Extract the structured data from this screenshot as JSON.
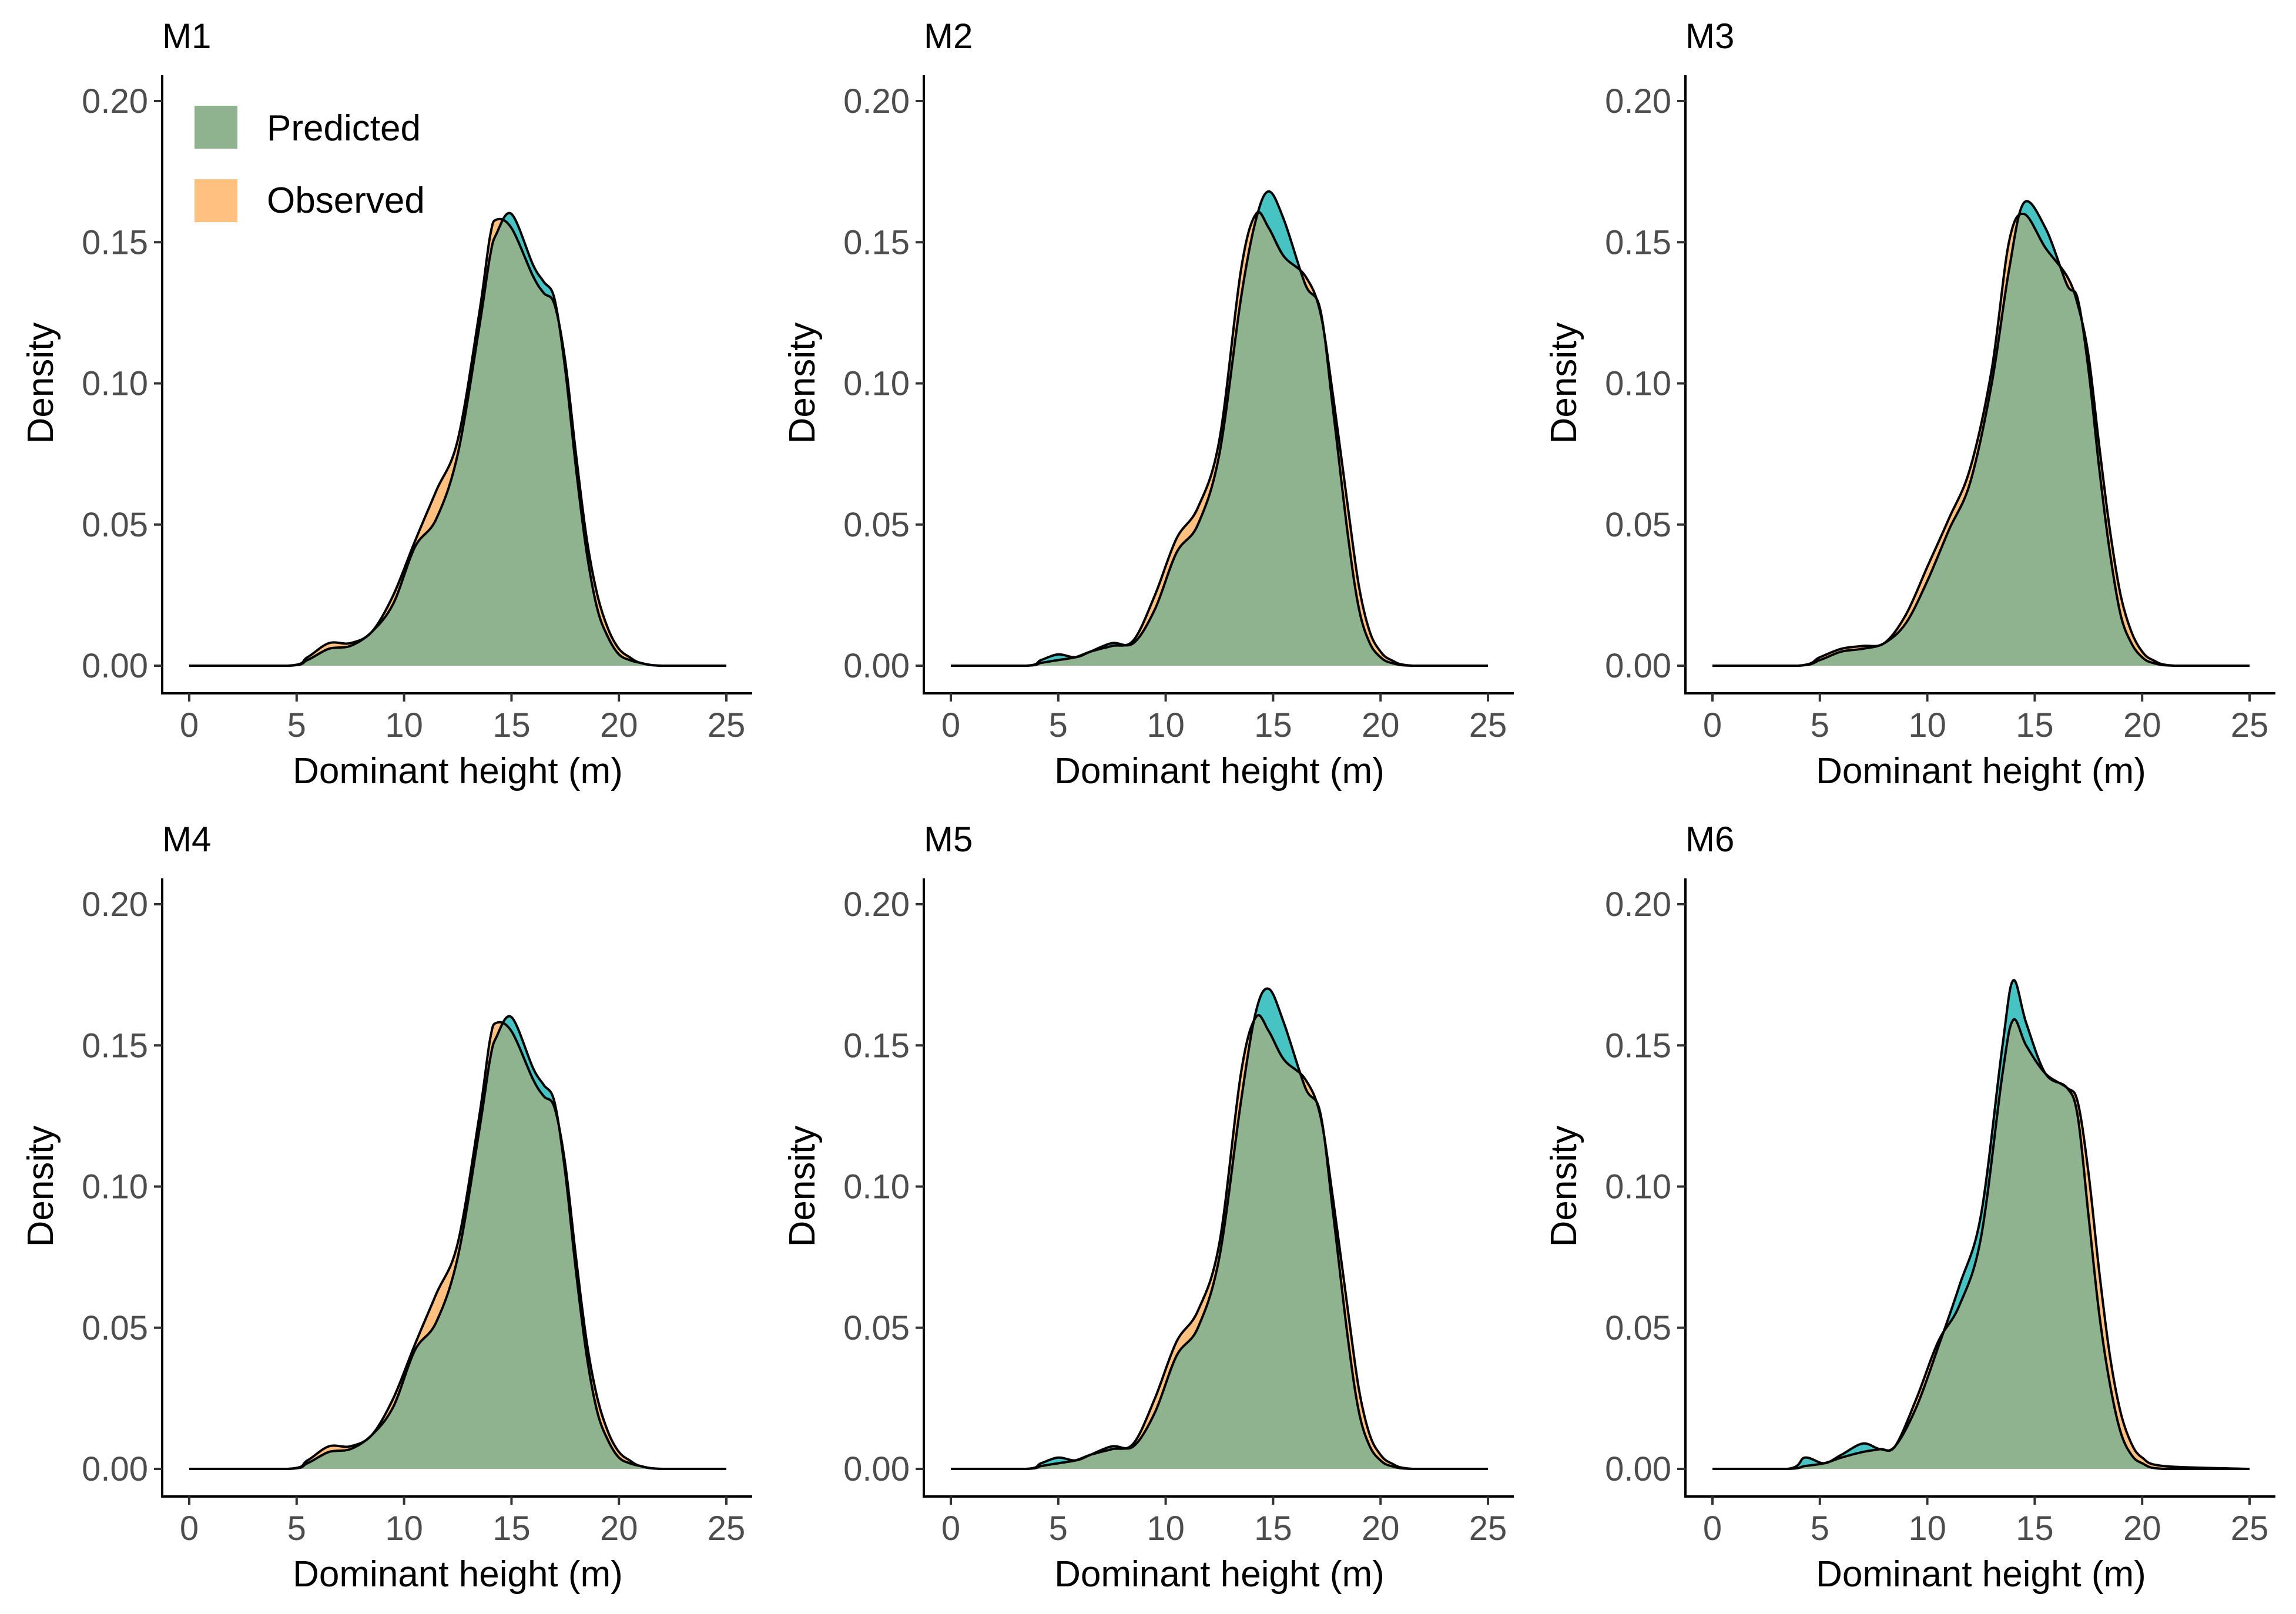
{
  "figure": {
    "colors": {
      "predicted_fill": "#48c3c3",
      "observed_fill": "#ffc080",
      "overlap_fill": "#8fb38f",
      "line": "#000000"
    }
  },
  "chart_data": [
    {
      "type": "area",
      "title": "M1",
      "xlabel": "Dominant height (m)",
      "ylabel": "Density",
      "xlim": [
        0,
        25
      ],
      "ylim": [
        0,
        0.2
      ],
      "xticks": [
        "0",
        "5",
        "10",
        "15",
        "20",
        "25"
      ],
      "yticks": [
        "0.00",
        "0.05",
        "0.10",
        "0.15",
        "0.20"
      ],
      "legend": {
        "position": "top-left",
        "entries": [
          "Predicted",
          "Observed"
        ]
      },
      "x": [
        0,
        4.6,
        5.5,
        6.5,
        7.5,
        8.5,
        9.5,
        10.5,
        11.5,
        12.5,
        13.5,
        14.0,
        14.3,
        15.0,
        16.0,
        16.5,
        17.0,
        17.5,
        18.0,
        18.5,
        19.0,
        19.5,
        20.0,
        20.5,
        21.0,
        22.0,
        25
      ],
      "series": [
        {
          "name": "Predicted",
          "values": [
            0,
            0.0,
            0.002,
            0.006,
            0.007,
            0.012,
            0.022,
            0.042,
            0.052,
            0.075,
            0.12,
            0.145,
            0.153,
            0.16,
            0.142,
            0.136,
            0.13,
            0.105,
            0.07,
            0.04,
            0.02,
            0.01,
            0.004,
            0.002,
            0.001,
            0.0,
            0
          ]
        },
        {
          "name": "Observed",
          "values": [
            0,
            0.0,
            0.003,
            0.008,
            0.008,
            0.012,
            0.025,
            0.044,
            0.062,
            0.08,
            0.125,
            0.152,
            0.158,
            0.155,
            0.138,
            0.132,
            0.128,
            0.108,
            0.075,
            0.045,
            0.025,
            0.013,
            0.006,
            0.003,
            0.001,
            0.0,
            0
          ]
        }
      ]
    },
    {
      "type": "area",
      "title": "M2",
      "xlabel": "Dominant height (m)",
      "ylabel": "Density",
      "xlim": [
        0,
        25
      ],
      "ylim": [
        0,
        0.2
      ],
      "xticks": [
        "0",
        "5",
        "10",
        "15",
        "20",
        "25"
      ],
      "yticks": [
        "0.00",
        "0.05",
        "0.10",
        "0.15",
        "0.20"
      ],
      "x": [
        0,
        3.5,
        4.2,
        5.0,
        5.8,
        6.5,
        7.5,
        8.5,
        9.5,
        10.5,
        11.5,
        12.5,
        13.5,
        14.2,
        14.8,
        15.5,
        16.5,
        17.2,
        17.8,
        18.5,
        19.0,
        19.5,
        20.0,
        20.5,
        21.5,
        25
      ],
      "series": [
        {
          "name": "Predicted",
          "values": [
            0,
            0.0,
            0.002,
            0.004,
            0.003,
            0.005,
            0.008,
            0.008,
            0.02,
            0.04,
            0.05,
            0.075,
            0.13,
            0.158,
            0.168,
            0.158,
            0.135,
            0.126,
            0.09,
            0.045,
            0.02,
            0.008,
            0.003,
            0.001,
            0.0,
            0
          ]
        },
        {
          "name": "Observed",
          "values": [
            0,
            0.0,
            0.001,
            0.002,
            0.003,
            0.005,
            0.007,
            0.009,
            0.025,
            0.045,
            0.056,
            0.08,
            0.14,
            0.16,
            0.155,
            0.145,
            0.138,
            0.125,
            0.095,
            0.055,
            0.028,
            0.012,
            0.005,
            0.002,
            0.0,
            0
          ]
        }
      ]
    },
    {
      "type": "area",
      "title": "M3",
      "xlabel": "Dominant height (m)",
      "ylabel": "Density",
      "xlim": [
        0,
        25
      ],
      "ylim": [
        0,
        0.2
      ],
      "xticks": [
        "0",
        "5",
        "10",
        "15",
        "20",
        "25"
      ],
      "yticks": [
        "0.00",
        "0.05",
        "0.10",
        "0.15",
        "0.20"
      ],
      "x": [
        0,
        4.0,
        5.0,
        6.0,
        7.0,
        8.0,
        9.0,
        10.0,
        11.0,
        12.0,
        13.0,
        13.8,
        14.5,
        15.5,
        16.5,
        17.0,
        17.5,
        18.0,
        18.5,
        19.0,
        19.5,
        20.0,
        20.5,
        21.5,
        25
      ],
      "series": [
        {
          "name": "Predicted",
          "values": [
            0,
            0.0,
            0.002,
            0.005,
            0.006,
            0.008,
            0.015,
            0.03,
            0.048,
            0.065,
            0.1,
            0.14,
            0.164,
            0.155,
            0.135,
            0.13,
            0.105,
            0.07,
            0.04,
            0.018,
            0.008,
            0.003,
            0.001,
            0.0,
            0
          ]
        },
        {
          "name": "Observed",
          "values": [
            0,
            0.0,
            0.003,
            0.006,
            0.007,
            0.008,
            0.018,
            0.035,
            0.052,
            0.07,
            0.105,
            0.15,
            0.16,
            0.148,
            0.138,
            0.128,
            0.11,
            0.078,
            0.048,
            0.025,
            0.012,
            0.005,
            0.002,
            0.0,
            0
          ]
        }
      ]
    },
    {
      "type": "area",
      "title": "M4",
      "xlabel": "Dominant height (m)",
      "ylabel": "Density",
      "xlim": [
        0,
        25
      ],
      "ylim": [
        0,
        0.2
      ],
      "xticks": [
        "0",
        "5",
        "10",
        "15",
        "20",
        "25"
      ],
      "yticks": [
        "0.00",
        "0.05",
        "0.10",
        "0.15",
        "0.20"
      ],
      "x": [
        0,
        4.6,
        5.5,
        6.5,
        7.5,
        8.5,
        9.5,
        10.5,
        11.5,
        12.5,
        13.5,
        14.0,
        14.3,
        15.0,
        16.0,
        16.5,
        17.0,
        17.5,
        18.0,
        18.5,
        19.0,
        19.5,
        20.0,
        20.5,
        21.0,
        22.0,
        25
      ],
      "series": [
        {
          "name": "Predicted",
          "values": [
            0,
            0.0,
            0.002,
            0.006,
            0.007,
            0.012,
            0.022,
            0.042,
            0.052,
            0.075,
            0.12,
            0.145,
            0.153,
            0.16,
            0.142,
            0.136,
            0.13,
            0.105,
            0.07,
            0.04,
            0.02,
            0.01,
            0.004,
            0.002,
            0.001,
            0.0,
            0
          ]
        },
        {
          "name": "Observed",
          "values": [
            0,
            0.0,
            0.003,
            0.008,
            0.008,
            0.012,
            0.025,
            0.044,
            0.062,
            0.08,
            0.125,
            0.152,
            0.158,
            0.155,
            0.138,
            0.132,
            0.128,
            0.108,
            0.075,
            0.045,
            0.025,
            0.013,
            0.006,
            0.003,
            0.001,
            0.0,
            0
          ]
        }
      ]
    },
    {
      "type": "area",
      "title": "M5",
      "xlabel": "Dominant height (m)",
      "ylabel": "Density",
      "xlim": [
        0,
        25
      ],
      "ylim": [
        0,
        0.2
      ],
      "xticks": [
        "0",
        "5",
        "10",
        "15",
        "20",
        "25"
      ],
      "yticks": [
        "0.00",
        "0.05",
        "0.10",
        "0.15",
        "0.20"
      ],
      "x": [
        0,
        3.5,
        4.2,
        5.0,
        5.8,
        6.5,
        7.5,
        8.5,
        9.5,
        10.5,
        11.5,
        12.5,
        13.5,
        14.2,
        14.8,
        15.5,
        16.5,
        17.2,
        17.8,
        18.5,
        19.0,
        19.5,
        20.0,
        20.5,
        21.5,
        25
      ],
      "series": [
        {
          "name": "Predicted",
          "values": [
            0,
            0.0,
            0.002,
            0.004,
            0.003,
            0.005,
            0.008,
            0.008,
            0.02,
            0.04,
            0.05,
            0.075,
            0.13,
            0.162,
            0.17,
            0.158,
            0.135,
            0.126,
            0.09,
            0.045,
            0.02,
            0.008,
            0.003,
            0.001,
            0.0,
            0
          ]
        },
        {
          "name": "Observed",
          "values": [
            0,
            0.0,
            0.001,
            0.002,
            0.003,
            0.005,
            0.007,
            0.009,
            0.025,
            0.045,
            0.056,
            0.08,
            0.14,
            0.16,
            0.155,
            0.145,
            0.138,
            0.125,
            0.095,
            0.055,
            0.028,
            0.012,
            0.005,
            0.002,
            0.0,
            0
          ]
        }
      ]
    },
    {
      "type": "area",
      "title": "M6",
      "xlabel": "Dominant height (m)",
      "ylabel": "Density",
      "xlim": [
        0,
        25
      ],
      "ylim": [
        0,
        0.2
      ],
      "xticks": [
        "0",
        "5",
        "10",
        "15",
        "20",
        "25"
      ],
      "yticks": [
        "0.00",
        "0.05",
        "0.10",
        "0.15",
        "0.20"
      ],
      "x": [
        0,
        3.5,
        4.3,
        5.2,
        6.0,
        7.0,
        7.8,
        8.5,
        9.5,
        10.5,
        11.5,
        12.5,
        13.5,
        14.0,
        14.6,
        15.5,
        16.5,
        17.0,
        17.5,
        18.0,
        18.5,
        19.0,
        19.5,
        20.0,
        21.0,
        25
      ],
      "series": [
        {
          "name": "Predicted",
          "values": [
            0,
            0.0,
            0.004,
            0.002,
            0.005,
            0.009,
            0.007,
            0.008,
            0.022,
            0.043,
            0.065,
            0.09,
            0.15,
            0.173,
            0.158,
            0.14,
            0.135,
            0.125,
            0.09,
            0.055,
            0.03,
            0.013,
            0.005,
            0.002,
            0.0,
            0
          ]
        },
        {
          "name": "Observed",
          "values": [
            0,
            0.0,
            0.001,
            0.002,
            0.004,
            0.006,
            0.007,
            0.008,
            0.025,
            0.045,
            0.058,
            0.082,
            0.14,
            0.159,
            0.15,
            0.14,
            0.135,
            0.13,
            0.105,
            0.07,
            0.04,
            0.02,
            0.009,
            0.004,
            0.001,
            0
          ]
        }
      ]
    }
  ]
}
